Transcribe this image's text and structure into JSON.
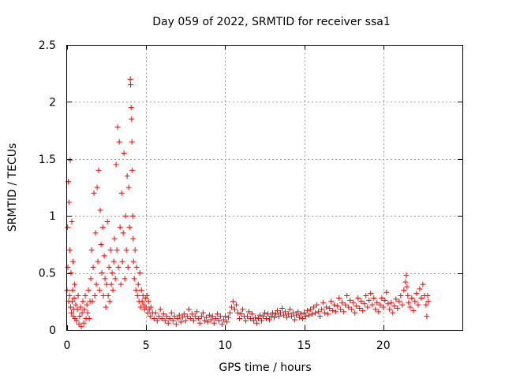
{
  "chart_data": {
    "type": "scatter",
    "title": "Day 059 of 2022, SRMTID for receiver ssa1",
    "xlabel": "GPS time / hours",
    "ylabel": "SRMTID / TECUs",
    "xlim": [
      0,
      25
    ],
    "ylim": [
      0,
      2.5
    ],
    "xticks": [
      0,
      5,
      10,
      15,
      20
    ],
    "xtick_labels": [
      "0",
      "5",
      "10",
      "15",
      "20"
    ],
    "yticks": [
      0,
      0.5,
      1,
      1.5,
      2,
      2.5
    ],
    "ytick_labels": [
      "0",
      "0.5",
      "1",
      "1.5",
      "2",
      "2.5"
    ],
    "grid": true,
    "marker": "+",
    "marker_color": "#ff0000",
    "series": [
      {
        "name": "SRMTID",
        "points": [
          [
            0.0,
            0.35
          ],
          [
            0.03,
            0.9
          ],
          [
            0.05,
            0.55
          ],
          [
            0.07,
            1.3
          ],
          [
            0.1,
            0.25
          ],
          [
            0.12,
            1.12
          ],
          [
            0.15,
            0.3
          ],
          [
            0.17,
            0.7
          ],
          [
            0.2,
            1.49
          ],
          [
            0.22,
            0.2
          ],
          [
            0.25,
            0.5
          ],
          [
            0.27,
            0.15
          ],
          [
            0.3,
            0.95
          ],
          [
            0.33,
            0.25
          ],
          [
            0.35,
            0.35
          ],
          [
            0.38,
            0.6
          ],
          [
            0.4,
            0.12
          ],
          [
            0.43,
            0.18
          ],
          [
            0.45,
            0.28
          ],
          [
            0.48,
            0.4
          ],
          [
            0.5,
            0.1
          ],
          [
            0.55,
            0.22
          ],
          [
            0.6,
            0.08
          ],
          [
            0.65,
            0.18
          ],
          [
            0.7,
            0.3
          ],
          [
            0.75,
            0.05
          ],
          [
            0.8,
            0.12
          ],
          [
            0.85,
            0.2
          ],
          [
            0.9,
            0.03
          ],
          [
            0.95,
            0.15
          ],
          [
            1.0,
            0.25
          ],
          [
            1.05,
            0.06
          ],
          [
            1.1,
            0.18
          ],
          [
            1.15,
            0.3
          ],
          [
            1.2,
            0.1
          ],
          [
            1.25,
            0.22
          ],
          [
            1.3,
            0.15
          ],
          [
            1.35,
            0.35
          ],
          [
            1.4,
            0.1
          ],
          [
            1.45,
            0.25
          ],
          [
            1.5,
            0.45
          ],
          [
            1.55,
            0.7
          ],
          [
            1.6,
            0.25
          ],
          [
            1.65,
            0.55
          ],
          [
            1.7,
            1.2
          ],
          [
            1.75,
            0.3
          ],
          [
            1.8,
            0.85
          ],
          [
            1.85,
            0.4
          ],
          [
            1.9,
            1.25
          ],
          [
            1.95,
            0.6
          ],
          [
            2.0,
            1.4
          ],
          [
            2.05,
            0.35
          ],
          [
            2.1,
            1.05
          ],
          [
            2.15,
            0.75
          ],
          [
            2.2,
            0.5
          ],
          [
            2.25,
            0.9
          ],
          [
            2.3,
            0.3
          ],
          [
            2.35,
            0.65
          ],
          [
            2.4,
            0.45
          ],
          [
            2.45,
            0.2
          ],
          [
            2.5,
            0.4
          ],
          [
            2.55,
            0.95
          ],
          [
            2.6,
            0.3
          ],
          [
            2.65,
            0.55
          ],
          [
            2.7,
            0.25
          ],
          [
            2.75,
            0.7
          ],
          [
            2.8,
            0.4
          ],
          [
            2.85,
            0.5
          ],
          [
            2.9,
            0.35
          ],
          [
            2.95,
            0.6
          ],
          [
            3.0,
            0.8
          ],
          [
            3.05,
            0.45
          ],
          [
            3.1,
            1.45
          ],
          [
            3.15,
            0.7
          ],
          [
            3.2,
            1.78
          ],
          [
            3.25,
            0.55
          ],
          [
            3.3,
            1.65
          ],
          [
            3.35,
            0.9
          ],
          [
            3.4,
            0.4
          ],
          [
            3.45,
            1.2
          ],
          [
            3.5,
            0.6
          ],
          [
            3.55,
            0.85
          ],
          [
            3.6,
            1.55
          ],
          [
            3.65,
            0.45
          ],
          [
            3.7,
            1.0
          ],
          [
            3.75,
            0.7
          ],
          [
            3.8,
            1.35
          ],
          [
            3.85,
            0.55
          ],
          [
            3.9,
            1.25
          ],
          [
            3.95,
            0.9
          ],
          [
            4.0,
            2.2
          ],
          [
            4.02,
            2.15
          ],
          [
            4.05,
            1.95
          ],
          [
            4.08,
            1.85
          ],
          [
            4.1,
            1.65
          ],
          [
            4.12,
            1.4
          ],
          [
            4.15,
            1.0
          ],
          [
            4.18,
            0.8
          ],
          [
            4.2,
            0.6
          ],
          [
            4.25,
            0.45
          ],
          [
            4.3,
            0.7
          ],
          [
            4.35,
            0.35
          ],
          [
            4.4,
            0.55
          ],
          [
            4.45,
            0.3
          ],
          [
            4.5,
            0.4
          ],
          [
            4.55,
            0.25
          ],
          [
            4.6,
            0.5
          ],
          [
            4.65,
            0.2
          ],
          [
            4.7,
            0.35
          ],
          [
            4.75,
            0.25
          ],
          [
            4.8,
            0.3
          ],
          [
            4.85,
            0.22
          ],
          [
            4.9,
            0.18
          ],
          [
            4.95,
            0.28
          ],
          [
            5.0,
            0.2
          ],
          [
            5.05,
            0.3
          ],
          [
            5.1,
            0.15
          ],
          [
            5.15,
            0.25
          ],
          [
            5.2,
            0.18
          ],
          [
            5.25,
            0.12
          ],
          [
            5.3,
            0.2
          ],
          [
            5.4,
            0.15
          ],
          [
            5.5,
            0.1
          ],
          [
            5.6,
            0.15
          ],
          [
            5.7,
            0.08
          ],
          [
            5.8,
            0.12
          ],
          [
            5.9,
            0.18
          ],
          [
            6.0,
            0.1
          ],
          [
            6.1,
            0.14
          ],
          [
            6.2,
            0.08
          ],
          [
            6.3,
            0.12
          ],
          [
            6.4,
            0.06
          ],
          [
            6.5,
            0.1
          ],
          [
            6.6,
            0.15
          ],
          [
            6.7,
            0.08
          ],
          [
            6.8,
            0.12
          ],
          [
            6.9,
            0.05
          ],
          [
            7.0,
            0.1
          ],
          [
            7.1,
            0.13
          ],
          [
            7.2,
            0.07
          ],
          [
            7.3,
            0.11
          ],
          [
            7.4,
            0.14
          ],
          [
            7.5,
            0.08
          ],
          [
            7.6,
            0.12
          ],
          [
            7.7,
            0.18
          ],
          [
            7.8,
            0.1
          ],
          [
            7.9,
            0.14
          ],
          [
            8.0,
            0.08
          ],
          [
            8.1,
            0.12
          ],
          [
            8.2,
            0.16
          ],
          [
            8.3,
            0.1
          ],
          [
            8.4,
            0.06
          ],
          [
            8.5,
            0.12
          ],
          [
            8.6,
            0.15
          ],
          [
            8.7,
            0.08
          ],
          [
            8.8,
            0.11
          ],
          [
            8.9,
            0.07
          ],
          [
            9.0,
            0.13
          ],
          [
            9.1,
            0.09
          ],
          [
            9.2,
            0.12
          ],
          [
            9.3,
            0.06
          ],
          [
            9.4,
            0.1
          ],
          [
            9.5,
            0.14
          ],
          [
            9.6,
            0.08
          ],
          [
            9.7,
            0.12
          ],
          [
            9.8,
            0.05
          ],
          [
            9.9,
            0.09
          ],
          [
            10.0,
            0.12
          ],
          [
            10.1,
            0.07
          ],
          [
            10.2,
            0.11
          ],
          [
            10.3,
            0.15
          ],
          [
            10.4,
            0.2
          ],
          [
            10.5,
            0.25
          ],
          [
            10.6,
            0.18
          ],
          [
            10.7,
            0.22
          ],
          [
            10.8,
            0.15
          ],
          [
            10.9,
            0.1
          ],
          [
            11.0,
            0.14
          ],
          [
            11.1,
            0.18
          ],
          [
            11.2,
            0.12
          ],
          [
            11.3,
            0.08
          ],
          [
            11.4,
            0.12
          ],
          [
            11.5,
            0.16
          ],
          [
            11.6,
            0.1
          ],
          [
            11.7,
            0.14
          ],
          [
            11.8,
            0.08
          ],
          [
            11.9,
            0.11
          ],
          [
            12.0,
            0.06
          ],
          [
            12.1,
            0.1
          ],
          [
            12.2,
            0.13
          ],
          [
            12.3,
            0.08
          ],
          [
            12.4,
            0.12
          ],
          [
            12.5,
            0.15
          ],
          [
            12.6,
            0.1
          ],
          [
            12.7,
            0.14
          ],
          [
            12.8,
            0.09
          ],
          [
            12.9,
            0.12
          ],
          [
            13.0,
            0.15
          ],
          [
            13.1,
            0.11
          ],
          [
            13.2,
            0.14
          ],
          [
            13.3,
            0.17
          ],
          [
            13.4,
            0.12
          ],
          [
            13.5,
            0.15
          ],
          [
            13.6,
            0.19
          ],
          [
            13.7,
            0.13
          ],
          [
            13.8,
            0.16
          ],
          [
            13.9,
            0.11
          ],
          [
            14.0,
            0.14
          ],
          [
            14.1,
            0.18
          ],
          [
            14.2,
            0.12
          ],
          [
            14.3,
            0.15
          ],
          [
            14.4,
            0.09
          ],
          [
            14.5,
            0.13
          ],
          [
            14.6,
            0.16
          ],
          [
            14.7,
            0.11
          ],
          [
            14.8,
            0.14
          ],
          [
            14.9,
            0.1
          ],
          [
            15.0,
            0.15
          ],
          [
            15.1,
            0.12
          ],
          [
            15.2,
            0.17
          ],
          [
            15.3,
            0.13
          ],
          [
            15.4,
            0.18
          ],
          [
            15.5,
            0.14
          ],
          [
            15.6,
            0.2
          ],
          [
            15.7,
            0.15
          ],
          [
            15.8,
            0.22
          ],
          [
            15.9,
            0.16
          ],
          [
            16.0,
            0.12
          ],
          [
            16.1,
            0.18
          ],
          [
            16.2,
            0.24
          ],
          [
            16.3,
            0.15
          ],
          [
            16.4,
            0.2
          ],
          [
            16.5,
            0.14
          ],
          [
            16.6,
            0.19
          ],
          [
            16.7,
            0.25
          ],
          [
            16.8,
            0.17
          ],
          [
            16.9,
            0.22
          ],
          [
            17.0,
            0.16
          ],
          [
            17.1,
            0.21
          ],
          [
            17.2,
            0.28
          ],
          [
            17.3,
            0.18
          ],
          [
            17.4,
            0.24
          ],
          [
            17.5,
            0.16
          ],
          [
            17.6,
            0.22
          ],
          [
            17.7,
            0.3
          ],
          [
            17.8,
            0.2
          ],
          [
            17.9,
            0.26
          ],
          [
            18.0,
            0.18
          ],
          [
            18.1,
            0.24
          ],
          [
            18.2,
            0.15
          ],
          [
            18.3,
            0.21
          ],
          [
            18.4,
            0.28
          ],
          [
            18.5,
            0.19
          ],
          [
            18.6,
            0.25
          ],
          [
            18.7,
            0.17
          ],
          [
            18.8,
            0.23
          ],
          [
            18.9,
            0.3
          ],
          [
            19.0,
            0.2
          ],
          [
            19.1,
            0.26
          ],
          [
            19.2,
            0.32
          ],
          [
            19.3,
            0.22
          ],
          [
            19.4,
            0.28
          ],
          [
            19.5,
            0.18
          ],
          [
            19.6,
            0.24
          ],
          [
            19.7,
            0.16
          ],
          [
            19.8,
            0.22
          ],
          [
            19.9,
            0.28
          ],
          [
            20.0,
            0.2
          ],
          [
            20.1,
            0.26
          ],
          [
            20.2,
            0.33
          ],
          [
            20.3,
            0.23
          ],
          [
            20.4,
            0.18
          ],
          [
            20.5,
            0.24
          ],
          [
            20.6,
            0.15
          ],
          [
            20.7,
            0.21
          ],
          [
            20.8,
            0.27
          ],
          [
            20.9,
            0.19
          ],
          [
            21.0,
            0.25
          ],
          [
            21.1,
            0.3
          ],
          [
            21.2,
            0.22
          ],
          [
            21.3,
            0.35
          ],
          [
            21.4,
            0.42
          ],
          [
            21.45,
            0.48
          ],
          [
            21.5,
            0.38
          ],
          [
            21.55,
            0.3
          ],
          [
            21.6,
            0.24
          ],
          [
            21.7,
            0.2
          ],
          [
            21.8,
            0.28
          ],
          [
            21.9,
            0.17
          ],
          [
            22.0,
            0.25
          ],
          [
            22.1,
            0.32
          ],
          [
            22.2,
            0.22
          ],
          [
            22.3,
            0.36
          ],
          [
            22.4,
            0.28
          ],
          [
            22.5,
            0.4
          ],
          [
            22.6,
            0.3
          ],
          [
            22.7,
            0.22
          ],
          [
            22.75,
            0.12
          ],
          [
            22.8,
            0.3
          ],
          [
            22.85,
            0.25
          ]
        ]
      }
    ]
  }
}
